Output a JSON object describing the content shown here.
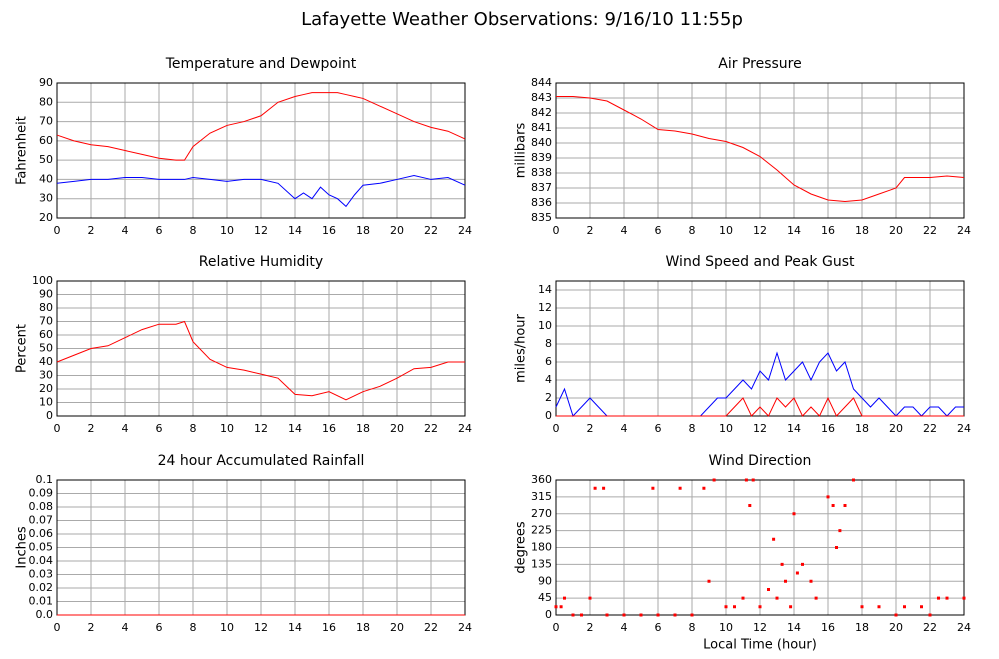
{
  "title": "Lafayette Weather Observations: 9/16/10 11:55p",
  "chart_data": [
    {
      "type": "line",
      "title": "Temperature and Dewpoint",
      "ylabel": "Fahrenheit",
      "x": [
        0,
        1,
        2,
        3,
        4,
        5,
        6,
        7,
        7.5,
        8,
        9,
        10,
        11,
        12,
        13,
        14,
        14.5,
        15,
        15.5,
        16,
        16.5,
        17,
        17.5,
        18,
        19,
        20,
        21,
        22,
        23,
        24
      ],
      "series": [
        {
          "color": "#ff0000",
          "values": [
            63,
            60,
            58,
            57,
            55,
            53,
            51,
            50,
            50,
            57,
            64,
            68,
            70,
            73,
            80,
            83,
            84,
            85,
            85,
            85,
            85,
            84,
            83,
            82,
            78,
            74,
            70,
            67,
            65,
            61
          ]
        },
        {
          "color": "#0000ff",
          "values": [
            38,
            39,
            40,
            40,
            41,
            41,
            40,
            40,
            40,
            41,
            40,
            39,
            40,
            40,
            38,
            30,
            33,
            30,
            36,
            32,
            30,
            26,
            32,
            37,
            38,
            40,
            42,
            40,
            41,
            37
          ]
        }
      ],
      "xlim": [
        0,
        24
      ],
      "xticks": [
        0,
        2,
        4,
        6,
        8,
        10,
        12,
        14,
        16,
        18,
        20,
        22,
        24
      ],
      "ylim": [
        20,
        90
      ],
      "yticks": [
        20,
        30,
        40,
        50,
        60,
        70,
        80,
        90
      ],
      "grid": true
    },
    {
      "type": "line",
      "title": "Air Pressure",
      "ylabel": "millibars",
      "x": [
        0,
        1,
        2,
        3,
        4,
        5,
        6,
        7,
        8,
        9,
        10,
        11,
        12,
        13,
        14,
        15,
        16,
        17,
        18,
        19,
        20,
        20.5,
        21,
        22,
        23,
        24
      ],
      "series": [
        {
          "color": "#ff0000",
          "values": [
            843.1,
            843.1,
            843,
            842.8,
            842.2,
            841.6,
            840.9,
            840.8,
            840.6,
            840.3,
            840.1,
            839.7,
            839.1,
            838.2,
            837.2,
            836.6,
            836.2,
            836.1,
            836.2,
            836.6,
            837,
            837.7,
            837.7,
            837.7,
            837.8,
            837.7
          ]
        }
      ],
      "xlim": [
        0,
        24
      ],
      "xticks": [
        0,
        2,
        4,
        6,
        8,
        10,
        12,
        14,
        16,
        18,
        20,
        22,
        24
      ],
      "ylim": [
        835,
        844
      ],
      "yticks": [
        835,
        836,
        837,
        838,
        839,
        840,
        841,
        842,
        843,
        844
      ],
      "grid": true
    },
    {
      "type": "line",
      "title": "Relative Humidity",
      "ylabel": "Percent",
      "x": [
        0,
        1,
        2,
        3,
        4,
        5,
        6,
        7,
        7.5,
        8,
        9,
        10,
        11,
        12,
        13,
        14,
        15,
        16,
        17,
        18,
        19,
        20,
        21,
        22,
        23,
        24
      ],
      "series": [
        {
          "color": "#ff0000",
          "values": [
            40,
            45,
            50,
            52,
            58,
            64,
            68,
            68,
            70,
            55,
            42,
            36,
            34,
            31,
            28,
            16,
            15,
            18,
            12,
            18,
            22,
            28,
            35,
            36,
            40,
            40
          ]
        }
      ],
      "xlim": [
        0,
        24
      ],
      "xticks": [
        0,
        2,
        4,
        6,
        8,
        10,
        12,
        14,
        16,
        18,
        20,
        22,
        24
      ],
      "ylim": [
        0,
        100
      ],
      "yticks": [
        0,
        10,
        20,
        30,
        40,
        50,
        60,
        70,
        80,
        90,
        100
      ],
      "grid": true
    },
    {
      "type": "line",
      "title": "Wind Speed and Peak Gust",
      "ylabel": "miles/hour",
      "x": [
        0,
        0.5,
        1,
        1.5,
        2,
        2.5,
        3,
        3.5,
        4,
        4.5,
        5,
        5.5,
        6,
        6.5,
        7,
        7.5,
        8,
        8.5,
        9,
        9.5,
        10,
        10.5,
        11,
        11.5,
        12,
        12.5,
        13,
        13.5,
        14,
        14.5,
        15,
        15.5,
        16,
        16.5,
        17,
        17.5,
        18,
        18.5,
        19,
        19.5,
        20,
        20.5,
        21,
        21.5,
        22,
        22.5,
        23,
        23.5,
        24
      ],
      "series": [
        {
          "color": "#0000ff",
          "values": [
            1,
            3,
            0,
            1,
            2,
            1,
            0,
            0,
            0,
            0,
            0,
            0,
            0,
            0,
            0,
            0,
            0,
            0,
            1,
            2,
            2,
            3,
            4,
            3,
            5,
            4,
            7,
            4,
            5,
            6,
            4,
            6,
            7,
            5,
            6,
            3,
            2,
            1,
            2,
            1,
            0,
            1,
            1,
            0,
            1,
            1,
            0,
            1,
            1
          ]
        },
        {
          "color": "#ff0000",
          "values": [
            0,
            0,
            0,
            0,
            0,
            0,
            0,
            0,
            0,
            0,
            0,
            0,
            0,
            0,
            0,
            0,
            0,
            0,
            0,
            0,
            0,
            1,
            2,
            0,
            1,
            0,
            2,
            1,
            2,
            0,
            1,
            0,
            2,
            0,
            1,
            2,
            0,
            0,
            0,
            0,
            0,
            0,
            0,
            0,
            0,
            0,
            0,
            0,
            0
          ]
        }
      ],
      "xlim": [
        0,
        24
      ],
      "xticks": [
        0,
        2,
        4,
        6,
        8,
        10,
        12,
        14,
        16,
        18,
        20,
        22,
        24
      ],
      "ylim": [
        0,
        15
      ],
      "yticks": [
        0,
        2,
        4,
        6,
        8,
        10,
        12,
        14
      ],
      "grid": true
    },
    {
      "type": "line",
      "title": "24 hour Accumulated Rainfall",
      "ylabel": "Inches",
      "x": [
        0,
        24
      ],
      "series": [
        {
          "color": "#ff0000",
          "values": [
            0,
            0
          ]
        }
      ],
      "xlim": [
        0,
        24
      ],
      "xticks": [
        0,
        2,
        4,
        6,
        8,
        10,
        12,
        14,
        16,
        18,
        20,
        22,
        24
      ],
      "ylim": [
        0,
        0.1
      ],
      "yticks": [
        {
          "value": 0,
          "label": "0.0"
        },
        0.01,
        0.02,
        0.03,
        0.04,
        0.05,
        0.06,
        0.07,
        0.08,
        0.09,
        0.1
      ],
      "grid": true
    },
    {
      "type": "scatter",
      "title": "Wind Direction",
      "ylabel": "degrees",
      "xlabel": "Local Time (hour)",
      "x": [
        0,
        0.3,
        0.5,
        1,
        1.5,
        2,
        2.3,
        2.8,
        3,
        4,
        5,
        5.7,
        6,
        7,
        7.3,
        8,
        8.7,
        9,
        9.3,
        10,
        10.5,
        11,
        11.2,
        11.4,
        11.6,
        12,
        12.5,
        12.8,
        13,
        13.3,
        13.5,
        13.8,
        14,
        14.2,
        14.5,
        15,
        15.3,
        16,
        16.3,
        16.5,
        16.7,
        17,
        17.5,
        18,
        19,
        20,
        20.5,
        21.5,
        22,
        22.5,
        23,
        24
      ],
      "series": [
        {
          "color": "#ff0000",
          "values": [
            22,
            22,
            45,
            0,
            0,
            45,
            338,
            338,
            0,
            0,
            0,
            338,
            0,
            0,
            338,
            0,
            338,
            90,
            360,
            22,
            22,
            45,
            360,
            292,
            360,
            22,
            68,
            202,
            45,
            135,
            90,
            22,
            270,
            112,
            135,
            90,
            45,
            315,
            292,
            180,
            225,
            292,
            360,
            22,
            22,
            0,
            22,
            22,
            0,
            45,
            45,
            45
          ]
        }
      ],
      "xlim": [
        0,
        24
      ],
      "xticks": [
        0,
        2,
        4,
        6,
        8,
        10,
        12,
        14,
        16,
        18,
        20,
        22,
        24
      ],
      "ylim": [
        0,
        360
      ],
      "yticks": [
        0,
        45,
        90,
        135,
        180,
        225,
        270,
        315,
        360
      ],
      "grid": true
    }
  ]
}
